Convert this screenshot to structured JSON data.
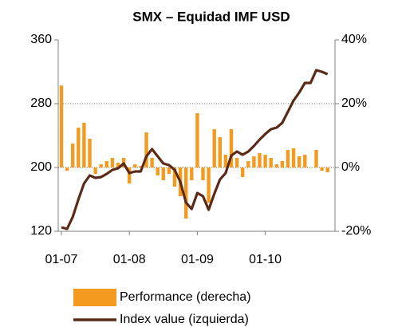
{
  "chart_data": {
    "type": "bar_line",
    "title": "SMX – Equidad IMF USD",
    "categories": [
      "01-07",
      null,
      null,
      null,
      null,
      null,
      null,
      null,
      null,
      null,
      null,
      null,
      "01-08",
      null,
      null,
      null,
      null,
      null,
      null,
      null,
      null,
      null,
      null,
      null,
      "01-09",
      null,
      null,
      null,
      null,
      null,
      null,
      null,
      null,
      null,
      null,
      null,
      "01-10",
      null,
      null,
      null,
      null,
      null,
      null,
      null,
      null,
      null,
      null,
      null
    ],
    "series": [
      {
        "name": "Performance (derecha)",
        "color": "#f39a1f",
        "type": "bar",
        "axis": "y2",
        "values": [
          25.7,
          -1,
          7.5,
          12.5,
          14,
          9,
          -2,
          1,
          2,
          3,
          1.5,
          3,
          -5,
          1,
          0.5,
          11,
          3,
          -2.5,
          -4,
          -2,
          -6,
          -9,
          -16,
          -4,
          17,
          -4,
          -11,
          12,
          9.5,
          4,
          12,
          3,
          -3,
          2,
          3.5,
          4.5,
          4,
          3,
          1,
          2,
          5.5,
          6,
          3.5,
          4,
          0,
          5.5,
          -1,
          -1.5
        ]
      },
      {
        "name": "Index value (izquierda)",
        "color": "#5a2a17",
        "type": "line",
        "axis": "y",
        "values": [
          125,
          123,
          138,
          160,
          180,
          190,
          187,
          188,
          192,
          197,
          199,
          205,
          193,
          195,
          195,
          214,
          223,
          214,
          205,
          203,
          197,
          182,
          156,
          148,
          168,
          164,
          147,
          167,
          185,
          193,
          215,
          220,
          216,
          220,
          227,
          235,
          242,
          248,
          250,
          256,
          270,
          284,
          294,
          306,
          306,
          322,
          320,
          317
        ]
      }
    ],
    "ylim": [
      120,
      360
    ],
    "yticks": [
      360,
      280,
      200,
      120
    ],
    "y2lim": [
      -20,
      40
    ],
    "y2ticks": [
      {
        "value": 40,
        "label": "40%"
      },
      {
        "value": 20,
        "label": "20%"
      },
      {
        "value": 0,
        "label": "0%"
      },
      {
        "value": -20,
        "label": "-20%"
      }
    ],
    "grid": true
  }
}
